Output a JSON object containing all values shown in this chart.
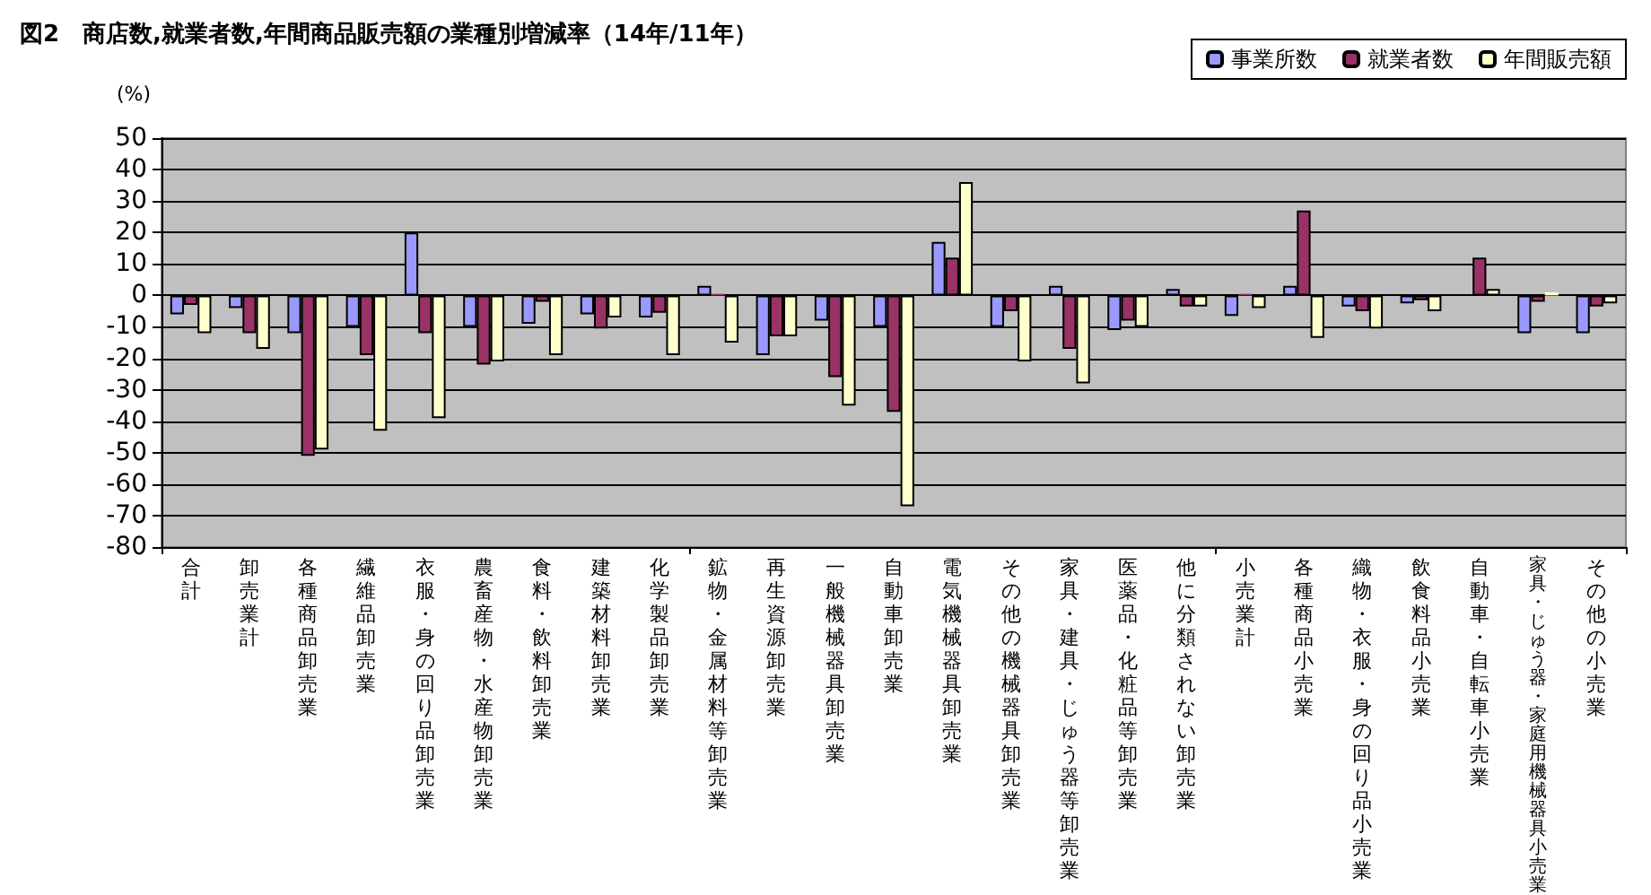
{
  "chart_data": {
    "type": "bar",
    "title": "図2　商店数,就業者数,年間商品販売額の業種別増減率（14年/11年）",
    "ylabel": "(%)",
    "categories": [
      "合計",
      "卸売業計",
      "各種商品卸売業",
      "繊維品卸売業",
      "衣服・身の回り品卸売業",
      "農畜産物・水産物卸売業",
      "食料・飲料卸売業",
      "建築材料卸売業",
      "化学製品卸売業",
      "鉱物・金属材料等卸売業",
      "再生資源卸売業",
      "一般機械器具卸売業",
      "自動車卸売業",
      "電気機械器具卸売業",
      "その他の機械器具卸売業",
      "家具・建具・じゅう器等卸売業",
      "医薬品・化粧品等卸売業",
      "他に分類されない卸売業",
      "小売業計",
      "各種商品小売業",
      "織物・衣服・身の回り品小売業",
      "飲食料品小売業",
      "自動車・自転車小売業",
      "家具・じゅう器・家庭用機械器具小売業",
      "その他の小売業"
    ],
    "series": [
      {
        "name": "事業所数",
        "color": "#9999ff",
        "values": [
          -6,
          -4,
          -12,
          -10,
          20,
          -10,
          -9,
          -6,
          -7,
          3,
          -19,
          -8,
          -10,
          17,
          -10,
          3,
          -11,
          2,
          -6.5,
          3,
          -3.5,
          -2.5,
          null,
          -12,
          -12
        ]
      },
      {
        "name": "就業者数",
        "color": "#993366",
        "values": [
          -3,
          -12,
          -51,
          -19,
          -12,
          -22,
          -2,
          -10.5,
          -5.5,
          0.5,
          -13,
          -26,
          -37,
          12,
          -5,
          -17,
          -8,
          -3.5,
          0.5,
          27,
          -5,
          -1.5,
          12,
          -2,
          -3.5
        ]
      },
      {
        "name": "年間販売額",
        "color": "#ffffcc",
        "values": [
          -12,
          -17,
          -49,
          -43,
          -39,
          -21,
          -19,
          -7,
          -19,
          -15,
          -13,
          -35,
          -67,
          36,
          -21,
          -28,
          -10,
          -3.5,
          -4,
          -13.5,
          -10.5,
          -5,
          2,
          1,
          -2.5
        ]
      }
    ],
    "ylim": [
      -80,
      50
    ],
    "yticks": [
      -80,
      -70,
      -60,
      -50,
      -40,
      -30,
      -20,
      -10,
      0,
      10,
      20,
      30,
      40,
      50
    ],
    "grid": "y",
    "legend": "top right"
  }
}
